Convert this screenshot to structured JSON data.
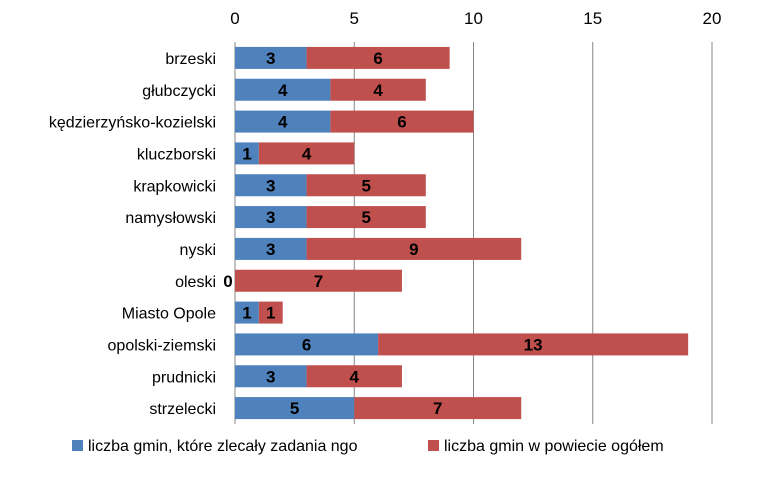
{
  "chart_data": {
    "type": "bar",
    "orientation": "horizontal",
    "stacked": true,
    "categories": [
      "brzeski",
      "głubczycki",
      "kędzierzyńsko-kozielski",
      "kluczborski",
      "krapkowicki",
      "namysłowski",
      "nyski",
      "oleski",
      "Miasto Opole",
      "opolski-ziemski",
      "prudnicki",
      "strzelecki"
    ],
    "series": [
      {
        "name": "liczba gmin, które zlecały zadania ngo",
        "color": "#4f81bd",
        "values": [
          3,
          4,
          4,
          1,
          3,
          3,
          3,
          0,
          1,
          6,
          3,
          5
        ]
      },
      {
        "name": "liczba gmin w powiecie ogółem",
        "color": "#c0504d",
        "values": [
          6,
          4,
          6,
          4,
          5,
          5,
          9,
          7,
          1,
          13,
          4,
          7
        ]
      }
    ],
    "xlim": [
      0,
      20
    ],
    "xticks": [
      0,
      5,
      10,
      15,
      20
    ],
    "xaxis_position": "top",
    "grid": true,
    "legend_position": "bottom",
    "title": "",
    "xlabel": "",
    "ylabel": ""
  }
}
